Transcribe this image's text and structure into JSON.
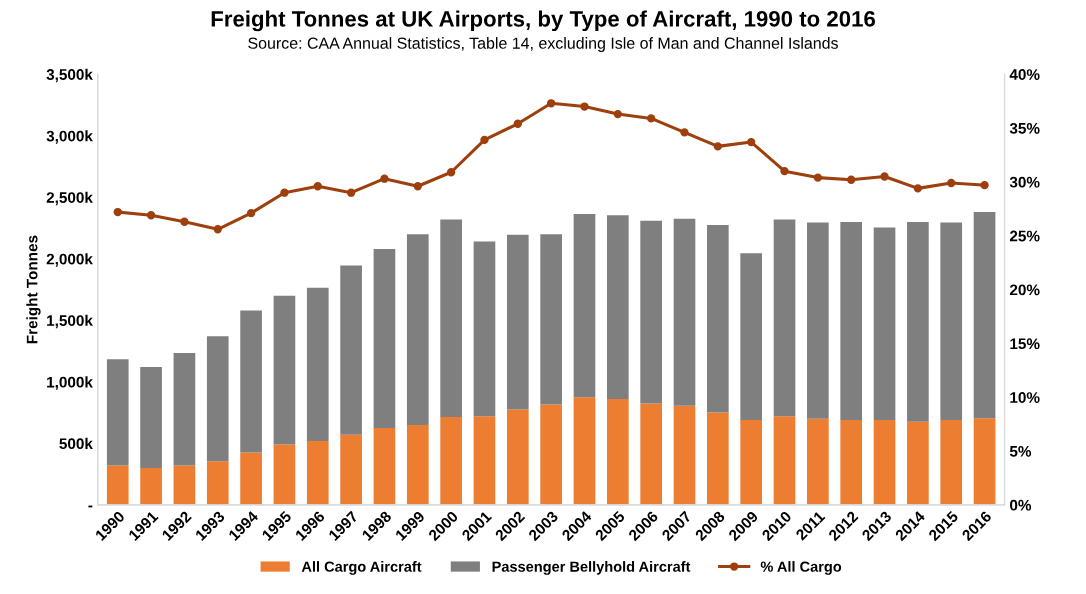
{
  "chart_data": {
    "type": "bar",
    "title": "Freight Tonnes at UK Airports, by Type of Aircraft, 1990 to 2016",
    "subtitle": "Source: CAA Annual Statistics, Table 14, excluding Isle of Man and Channel Islands",
    "ylabel": "Freight Tonnes",
    "categories": [
      "1990",
      "1991",
      "1992",
      "1993",
      "1994",
      "1995",
      "1996",
      "1997",
      "1998",
      "1999",
      "2000",
      "2001",
      "2002",
      "2003",
      "2004",
      "2005",
      "2006",
      "2007",
      "2008",
      "2009",
      "2010",
      "2011",
      "2012",
      "2013",
      "2014",
      "2015",
      "2016"
    ],
    "stacked": true,
    "series": [
      {
        "name": "All Cargo Aircraft",
        "color": "#ed7d31",
        "values": [
          320,
          300,
          320,
          355,
          425,
          490,
          520,
          570,
          625,
          650,
          715,
          720,
          775,
          815,
          875,
          860,
          825,
          805,
          750,
          690,
          720,
          700,
          690,
          690,
          675,
          690,
          705
        ]
      },
      {
        "name": "Passenger Bellyhold Aircraft",
        "color": "#7f7f7f",
        "values": [
          863,
          820,
          915,
          1015,
          1155,
          1210,
          1245,
          1375,
          1455,
          1550,
          1605,
          1420,
          1420,
          1385,
          1490,
          1495,
          1485,
          1520,
          1525,
          1355,
          1600,
          1595,
          1610,
          1565,
          1625,
          1605,
          1675
        ]
      },
      {
        "name": "% All Cargo",
        "type": "line",
        "axis": "y2",
        "color": "#9e3f0e",
        "marker": "circle",
        "values": [
          27.2,
          26.9,
          26.3,
          25.6,
          27.1,
          29.0,
          29.6,
          29.0,
          30.3,
          29.6,
          30.9,
          33.9,
          35.4,
          37.3,
          37.0,
          36.3,
          35.9,
          34.6,
          33.3,
          33.7,
          31.0,
          30.4,
          30.2,
          30.5,
          29.4,
          29.9,
          29.7
        ]
      }
    ],
    "ylim": [
      0,
      3500
    ],
    "yticks": [
      {
        "value": 0,
        "label": "-"
      },
      {
        "value": 500,
        "label": "500k"
      },
      {
        "value": 1000,
        "label": "1,000k"
      },
      {
        "value": 1500,
        "label": "1,500k"
      },
      {
        "value": 2000,
        "label": "2,000k"
      },
      {
        "value": 2500,
        "label": "2,500k"
      },
      {
        "value": 3000,
        "label": "3,000k"
      },
      {
        "value": 3500,
        "label": "3,500k"
      }
    ],
    "y2lim": [
      0,
      40
    ],
    "y2ticks": [
      {
        "value": 0,
        "label": "0%"
      },
      {
        "value": 5,
        "label": "5%"
      },
      {
        "value": 10,
        "label": "10%"
      },
      {
        "value": 15,
        "label": "15%"
      },
      {
        "value": 20,
        "label": "20%"
      },
      {
        "value": 25,
        "label": "25%"
      },
      {
        "value": 30,
        "label": "30%"
      },
      {
        "value": 35,
        "label": "35%"
      },
      {
        "value": 40,
        "label": "40%"
      }
    ],
    "grid": false,
    "legend": "bottom"
  }
}
